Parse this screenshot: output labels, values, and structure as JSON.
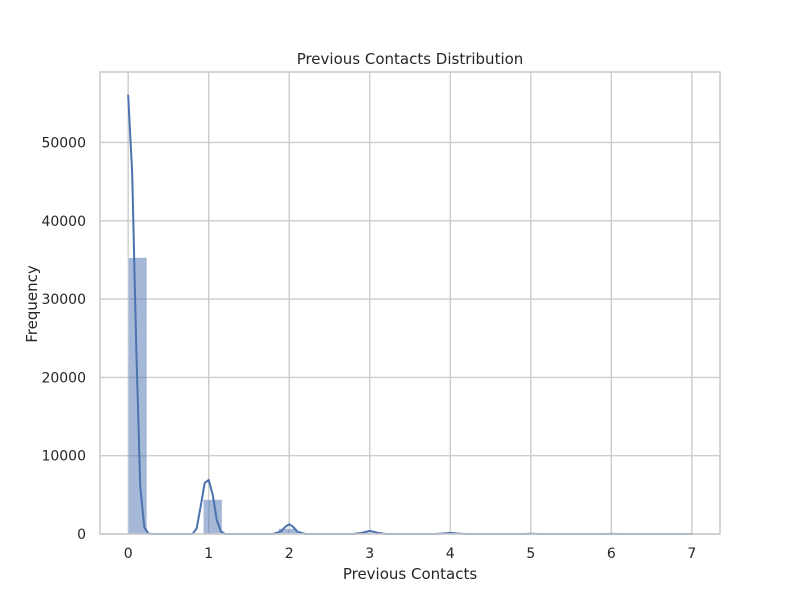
{
  "chart_data": {
    "type": "bar",
    "title": "Previous Contacts Distribution",
    "xlabel": "Previous Contacts",
    "ylabel": "Frequency",
    "xlim": [
      -0.35,
      7.35
    ],
    "ylim": [
      0,
      59000
    ],
    "x_ticks": [
      0,
      1,
      2,
      3,
      4,
      5,
      6,
      7
    ],
    "y_ticks": [
      0,
      10000,
      20000,
      30000,
      40000,
      50000
    ],
    "x_tick_labels": [
      "0",
      "1",
      "2",
      "3",
      "4",
      "5",
      "6",
      "7"
    ],
    "y_tick_labels": [
      "0",
      "10000",
      "20000",
      "30000",
      "40000",
      "50000"
    ],
    "grid": true,
    "histogram": {
      "bins": [
        {
          "x0": 0.0,
          "x1": 0.233,
          "value": 35300
        },
        {
          "x0": 0.933,
          "x1": 1.167,
          "value": 4400
        },
        {
          "x0": 1.867,
          "x1": 2.1,
          "value": 700
        },
        {
          "x0": 2.8,
          "x1": 3.033,
          "value": 200
        },
        {
          "x0": 3.733,
          "x1": 3.967,
          "value": 60
        },
        {
          "x0": 4.667,
          "x1": 4.9,
          "value": 20
        },
        {
          "x0": 5.6,
          "x1": 5.833,
          "value": 5
        },
        {
          "x0": 6.533,
          "x1": 6.767,
          "value": 2
        }
      ],
      "color": "#4c72b0",
      "opacity": 0.5
    },
    "kde": {
      "color": "#4c72b0",
      "points": [
        [
          0.0,
          56000
        ],
        [
          0.05,
          46000
        ],
        [
          0.1,
          24000
        ],
        [
          0.15,
          6000
        ],
        [
          0.2,
          900
        ],
        [
          0.25,
          50
        ],
        [
          0.3,
          0
        ],
        [
          0.8,
          0
        ],
        [
          0.85,
          700
        ],
        [
          0.9,
          3500
        ],
        [
          0.95,
          6500
        ],
        [
          1.0,
          6900
        ],
        [
          1.05,
          5000
        ],
        [
          1.1,
          1800
        ],
        [
          1.15,
          350
        ],
        [
          1.2,
          0
        ],
        [
          1.8,
          0
        ],
        [
          1.9,
          350
        ],
        [
          1.95,
          900
        ],
        [
          2.0,
          1250
        ],
        [
          2.05,
          900
        ],
        [
          2.1,
          300
        ],
        [
          2.2,
          0
        ],
        [
          2.8,
          0
        ],
        [
          2.9,
          150
        ],
        [
          3.0,
          400
        ],
        [
          3.1,
          150
        ],
        [
          3.2,
          0
        ],
        [
          3.8,
          0
        ],
        [
          3.9,
          50
        ],
        [
          4.0,
          150
        ],
        [
          4.1,
          50
        ],
        [
          4.2,
          0
        ],
        [
          4.9,
          0
        ],
        [
          5.0,
          40
        ],
        [
          5.1,
          0
        ],
        [
          5.9,
          0
        ],
        [
          6.0,
          15
        ],
        [
          6.1,
          0
        ],
        [
          7.0,
          0
        ]
      ]
    }
  },
  "style": {
    "grid_color": "#cccccc",
    "spine_color": "#cccccc",
    "text_color": "#262626"
  }
}
